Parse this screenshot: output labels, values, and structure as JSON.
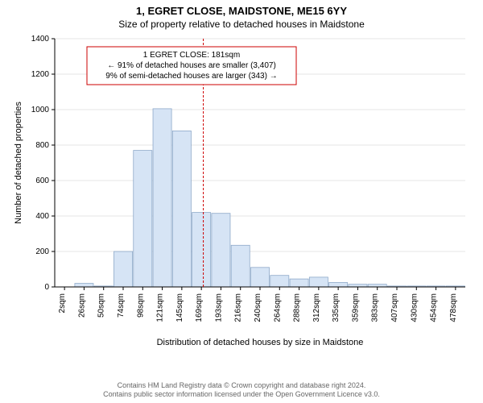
{
  "title": "1, EGRET CLOSE, MAIDSTONE, ME15 6YY",
  "subtitle": "Size of property relative to detached houses in Maidstone",
  "chart": {
    "type": "histogram",
    "categories": [
      "2sqm",
      "26sqm",
      "50sqm",
      "74sqm",
      "98sqm",
      "121sqm",
      "145sqm",
      "169sqm",
      "193sqm",
      "216sqm",
      "240sqm",
      "264sqm",
      "288sqm",
      "312sqm",
      "335sqm",
      "359sqm",
      "383sqm",
      "407sqm",
      "430sqm",
      "454sqm",
      "478sqm"
    ],
    "values": [
      0,
      20,
      5,
      200,
      770,
      1005,
      880,
      420,
      415,
      235,
      110,
      65,
      45,
      55,
      25,
      15,
      15,
      5,
      5,
      5,
      5
    ],
    "bar_color": "#d6e4f5",
    "bar_stroke": "#8ea9c9",
    "marker_line_x": 7.6,
    "marker_line_color": "#cc0000",
    "annotation": {
      "lines": [
        "1 EGRET CLOSE: 181sqm",
        "← 91% of detached houses are smaller (3,407)",
        "9% of semi-detached houses are larger (343) →"
      ],
      "border_color": "#cc0000",
      "text_color": "#000000",
      "font_size": 10
    },
    "ylabel": "Number of detached properties",
    "xlabel": "Distribution of detached houses by size in Maidstone",
    "ylim": [
      0,
      1400
    ],
    "ytick_step": 200,
    "axis_font_size": 11,
    "tick_font_size": 10,
    "background_color": "#ffffff",
    "grid_color": "#cccccc",
    "axis_color": "#000000",
    "bar_width": 0.95
  },
  "footer_line1": "Contains HM Land Registry data © Crown copyright and database right 2024.",
  "footer_line2": "Contains public sector information licensed under the Open Government Licence v3.0."
}
